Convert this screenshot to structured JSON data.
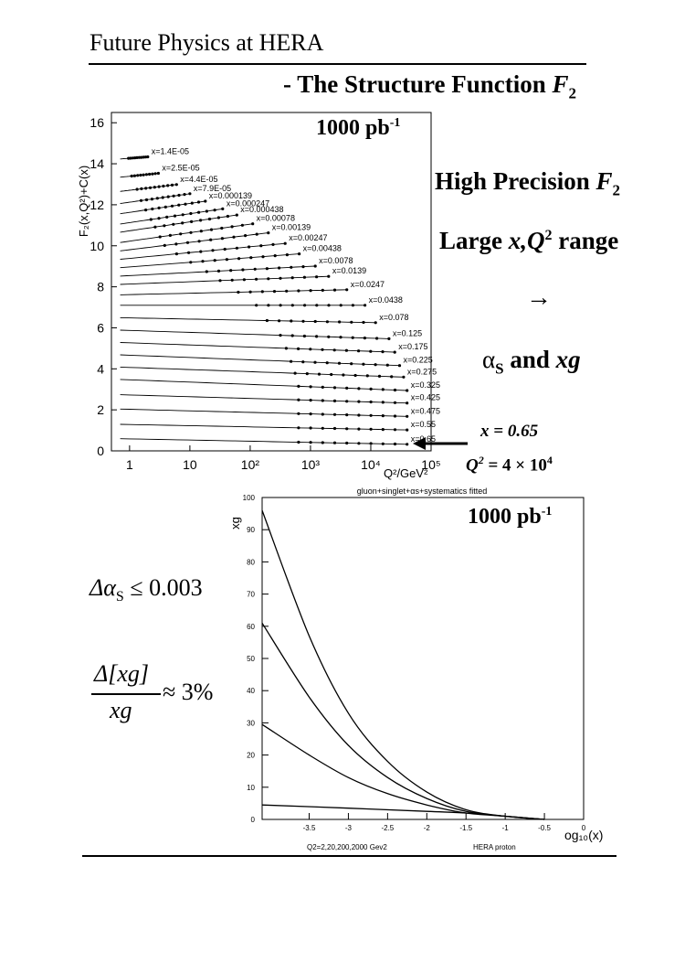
{
  "header": {
    "title": "Future Physics at HERA",
    "subtitle_prefix": "- The Structure Function ",
    "subtitle_var": "F",
    "subtitle_sub": "2"
  },
  "side": {
    "line1_a": "High Precision ",
    "line1_var": "F",
    "line1_sub": "2",
    "line2_a": "Large ",
    "line2_var": "x,Q",
    "line2_sup": "2",
    "line2_b": " range",
    "arrow": "→",
    "line3_alpha": "α",
    "line3_sub": "S",
    "line3_b": " and ",
    "line3_var": "xg",
    "point_x_label": "x = 0.65",
    "point_q_label": "Q",
    "point_q_sup": "2",
    "point_q_val": " = 4 × 10",
    "point_q_exp": "4",
    "da_prefix": "Δα",
    "da_sub": "S",
    "da_val": " ≤ 0.003",
    "frac_num": "Δ[xg]",
    "frac_den": "xg",
    "frac_val": "≈ 3%"
  },
  "chart_data": [
    {
      "type": "line",
      "lumi_base": "1000 pb",
      "lumi_exp": "-1",
      "ylabel": "F₂(x,Q²)+C(x)",
      "xlabel": "Q²/GeV²",
      "xscale": "log",
      "xlim": [
        0.5,
        100000
      ],
      "ylim": [
        0,
        16.5
      ],
      "yticks": [
        "0",
        "2",
        "4",
        "6",
        "8",
        "10",
        "12",
        "14",
        "16"
      ],
      "xticks": [
        "1",
        "10",
        "10²",
        "10³",
        "10⁴",
        "10⁵"
      ],
      "series": [
        {
          "name": "x=1.4E-05",
          "left": 14.2,
          "right": 15.4,
          "qmin": 0.7,
          "qmax": 2
        },
        {
          "name": "x=2.5E-05",
          "left": 13.3,
          "right": 14.9,
          "qmin": 0.7,
          "qmax": 3
        },
        {
          "name": "x=4.4E-05",
          "left": 12.6,
          "right": 14.5,
          "qmin": 0.7,
          "qmax": 6
        },
        {
          "name": "x=7.9E-05",
          "left": 12.0,
          "right": 14.2,
          "qmin": 0.7,
          "qmax": 10
        },
        {
          "name": "x=0.000139",
          "left": 11.5,
          "right": 13.8,
          "qmin": 0.7,
          "qmax": 18
        },
        {
          "name": "x=0.000247",
          "left": 11.0,
          "right": 13.3,
          "qmin": 0.7,
          "qmax": 35
        },
        {
          "name": "x=0.000438",
          "left": 10.6,
          "right": 12.9,
          "qmin": 0.7,
          "qmax": 60
        },
        {
          "name": "x=0.00078",
          "left": 10.1,
          "right": 12.3,
          "qmin": 0.7,
          "qmax": 110
        },
        {
          "name": "x=0.00139",
          "left": 9.7,
          "right": 11.6,
          "qmin": 0.7,
          "qmax": 200
        },
        {
          "name": "x=0.00247",
          "left": 9.3,
          "right": 10.8,
          "qmin": 0.7,
          "qmax": 380
        },
        {
          "name": "x=0.00438",
          "left": 8.9,
          "right": 10.1,
          "qmin": 0.7,
          "qmax": 650
        },
        {
          "name": "x=0.0078",
          "left": 8.5,
          "right": 9.3,
          "qmin": 0.7,
          "qmax": 1200
        },
        {
          "name": "x=0.0139",
          "left": 8.1,
          "right": 8.7,
          "qmin": 0.7,
          "qmax": 2000
        },
        {
          "name": "x=0.0247",
          "left": 7.6,
          "right": 7.95,
          "qmin": 0.7,
          "qmax": 4000
        },
        {
          "name": "x=0.0438",
          "left": 7.1,
          "right": 7.1,
          "qmin": 0.7,
          "qmax": 8000
        },
        {
          "name": "x=0.078",
          "left": 6.5,
          "right": 6.2,
          "qmin": 0.7,
          "qmax": 12000
        },
        {
          "name": "x=0.125",
          "left": 5.9,
          "right": 5.4,
          "qmin": 0.7,
          "qmax": 20000
        },
        {
          "name": "x=0.175",
          "left": 5.3,
          "right": 4.75,
          "qmin": 0.7,
          "qmax": 25000
        },
        {
          "name": "x=0.225",
          "left": 4.7,
          "right": 4.1,
          "qmin": 0.7,
          "qmax": 30000
        },
        {
          "name": "x=0.275",
          "left": 4.1,
          "right": 3.55,
          "qmin": 0.7,
          "qmax": 35000
        },
        {
          "name": "x=0.325",
          "left": 3.5,
          "right": 2.9,
          "qmin": 0.7,
          "qmax": 40000
        },
        {
          "name": "x=0.425",
          "left": 2.75,
          "right": 2.3,
          "qmin": 0.7,
          "qmax": 40000
        },
        {
          "name": "x=0.475",
          "left": 2.05,
          "right": 1.65,
          "qmin": 0.7,
          "qmax": 40000
        },
        {
          "name": "x=0.55",
          "left": 1.3,
          "right": 1.0,
          "qmin": 0.7,
          "qmax": 40000
        },
        {
          "name": "x=0.65",
          "left": 0.6,
          "right": 0.3,
          "qmin": 0.7,
          "qmax": 40000
        }
      ]
    },
    {
      "type": "line",
      "title": "gluon+singlet+αs+systematics fitted",
      "lumi_base": "1000 pb",
      "lumi_exp": "-1",
      "ylabel": "xg",
      "xlabel": "og₁₀(x)",
      "xlim": [
        -4.1,
        0
      ],
      "ylim": [
        0,
        100
      ],
      "xticks": [
        "-3.5",
        "-3",
        "-2.5",
        "-2",
        "-1.5",
        "-1",
        "-0.5",
        "0"
      ],
      "yticks": [
        "0",
        "10",
        "20",
        "30",
        "40",
        "50",
        "60",
        "70",
        "80",
        "90",
        "100"
      ],
      "footer_left": "Q2=2,20,200,2000 Gev2",
      "footer_right": "HERA proton",
      "series": [
        {
          "name": "Q2=2",
          "values_at_x": {
            "-4.1": 4.5,
            "-3": 3.5,
            "-2": 2.5,
            "-1.5": 2,
            "-1": 1,
            "-0.5": 0
          }
        },
        {
          "name": "Q2=20",
          "values_at_x": {
            "-4.1": 29.5,
            "-3.5": 20,
            "-3": 13,
            "-2.5": 8,
            "-2": 4.5,
            "-1.5": 2,
            "-1": 1,
            "-0.5": 0
          }
        },
        {
          "name": "Q2=200",
          "values_at_x": {
            "-4.1": 61,
            "-3.5": 38,
            "-3": 23,
            "-2.5": 13,
            "-2": 6.5,
            "-1.5": 2.5,
            "-1": 1,
            "-0.5": 0
          }
        },
        {
          "name": "Q2=2000",
          "values_at_x": {
            "-4.1": 96,
            "-3.5": 57,
            "-3": 33,
            "-2.5": 18,
            "-2": 8.5,
            "-1.5": 3,
            "-1": 1,
            "-0.5": 0
          }
        }
      ]
    }
  ]
}
